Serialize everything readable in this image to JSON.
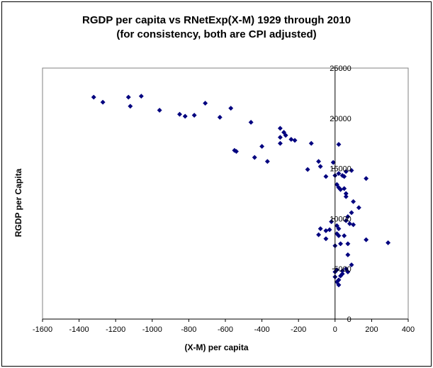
{
  "chart_data": {
    "type": "scatter",
    "title": "RGDP per capita vs RNetExp(X-M) 1929 through 2010",
    "subtitle": "(for consistency, both are CPI adjusted)",
    "xlabel": "(X-M) per capita",
    "ylabel": "RGDP per Capita",
    "xlim": [
      -1600,
      400
    ],
    "ylim": [
      0,
      25000
    ],
    "xticks": [
      -1600,
      -1400,
      -1200,
      -1000,
      -800,
      -600,
      -400,
      -200,
      0,
      200,
      400
    ],
    "yticks": [
      0,
      5000,
      10000,
      15000,
      20000,
      25000
    ],
    "grid": false,
    "legend": "none",
    "marker_color": "#00007f",
    "points": [
      {
        "x": -1320,
        "y": 22100
      },
      {
        "x": -1270,
        "y": 21600
      },
      {
        "x": -1130,
        "y": 22100
      },
      {
        "x": -1120,
        "y": 21200
      },
      {
        "x": -1060,
        "y": 22200
      },
      {
        "x": -960,
        "y": 20800
      },
      {
        "x": -850,
        "y": 20400
      },
      {
        "x": -820,
        "y": 20200
      },
      {
        "x": -770,
        "y": 20300
      },
      {
        "x": -710,
        "y": 21500
      },
      {
        "x": -630,
        "y": 20100
      },
      {
        "x": -570,
        "y": 21000
      },
      {
        "x": -550,
        "y": 16800
      },
      {
        "x": -540,
        "y": 16700
      },
      {
        "x": -460,
        "y": 19600
      },
      {
        "x": -440,
        "y": 16100
      },
      {
        "x": -400,
        "y": 17200
      },
      {
        "x": -370,
        "y": 15700
      },
      {
        "x": -300,
        "y": 19000
      },
      {
        "x": -300,
        "y": 18100
      },
      {
        "x": -300,
        "y": 17500
      },
      {
        "x": -280,
        "y": 18600
      },
      {
        "x": -270,
        "y": 18300
      },
      {
        "x": -240,
        "y": 17900
      },
      {
        "x": -220,
        "y": 17800
      },
      {
        "x": -150,
        "y": 14900
      },
      {
        "x": -130,
        "y": 17500
      },
      {
        "x": -90,
        "y": 15700
      },
      {
        "x": -80,
        "y": 15200
      },
      {
        "x": -50,
        "y": 14200
      },
      {
        "x": -10,
        "y": 15600
      },
      {
        "x": 0,
        "y": 14300
      },
      {
        "x": 10,
        "y": 13400
      },
      {
        "x": 20,
        "y": 17400
      },
      {
        "x": 20,
        "y": 14500
      },
      {
        "x": 20,
        "y": 13100
      },
      {
        "x": 30,
        "y": 12900
      },
      {
        "x": 40,
        "y": 14300
      },
      {
        "x": 50,
        "y": 14200
      },
      {
        "x": 50,
        "y": 13000
      },
      {
        "x": 60,
        "y": 14700
      },
      {
        "x": 60,
        "y": 12500
      },
      {
        "x": 60,
        "y": 12200
      },
      {
        "x": 90,
        "y": 14800
      },
      {
        "x": 100,
        "y": 11700
      },
      {
        "x": 130,
        "y": 11100
      },
      {
        "x": 170,
        "y": 14000
      },
      {
        "x": -90,
        "y": 8400
      },
      {
        "x": -80,
        "y": 9000
      },
      {
        "x": -50,
        "y": 8800
      },
      {
        "x": -30,
        "y": 8900
      },
      {
        "x": -20,
        "y": 9700
      },
      {
        "x": -50,
        "y": 8000
      },
      {
        "x": 0,
        "y": 7300
      },
      {
        "x": 10,
        "y": 9300
      },
      {
        "x": 10,
        "y": 8500
      },
      {
        "x": 20,
        "y": 9000
      },
      {
        "x": 20,
        "y": 8300
      },
      {
        "x": 30,
        "y": 7500
      },
      {
        "x": 50,
        "y": 8300
      },
      {
        "x": 60,
        "y": 9800
      },
      {
        "x": 70,
        "y": 10200
      },
      {
        "x": 70,
        "y": 7500
      },
      {
        "x": 70,
        "y": 6400
      },
      {
        "x": 80,
        "y": 9500
      },
      {
        "x": 90,
        "y": 10600
      },
      {
        "x": 100,
        "y": 9400
      },
      {
        "x": 170,
        "y": 7900
      },
      {
        "x": 290,
        "y": 7600
      },
      {
        "x": 0,
        "y": 4700
      },
      {
        "x": 0,
        "y": 4200
      },
      {
        "x": 10,
        "y": 4900
      },
      {
        "x": 10,
        "y": 3700
      },
      {
        "x": 20,
        "y": 3400
      },
      {
        "x": 30,
        "y": 4300
      },
      {
        "x": 40,
        "y": 4800
      },
      {
        "x": 40,
        "y": 4500
      },
      {
        "x": 60,
        "y": 5000
      },
      {
        "x": 70,
        "y": 4700
      },
      {
        "x": 90,
        "y": 5400
      },
      {
        "x": 20,
        "y": 3900
      }
    ]
  }
}
